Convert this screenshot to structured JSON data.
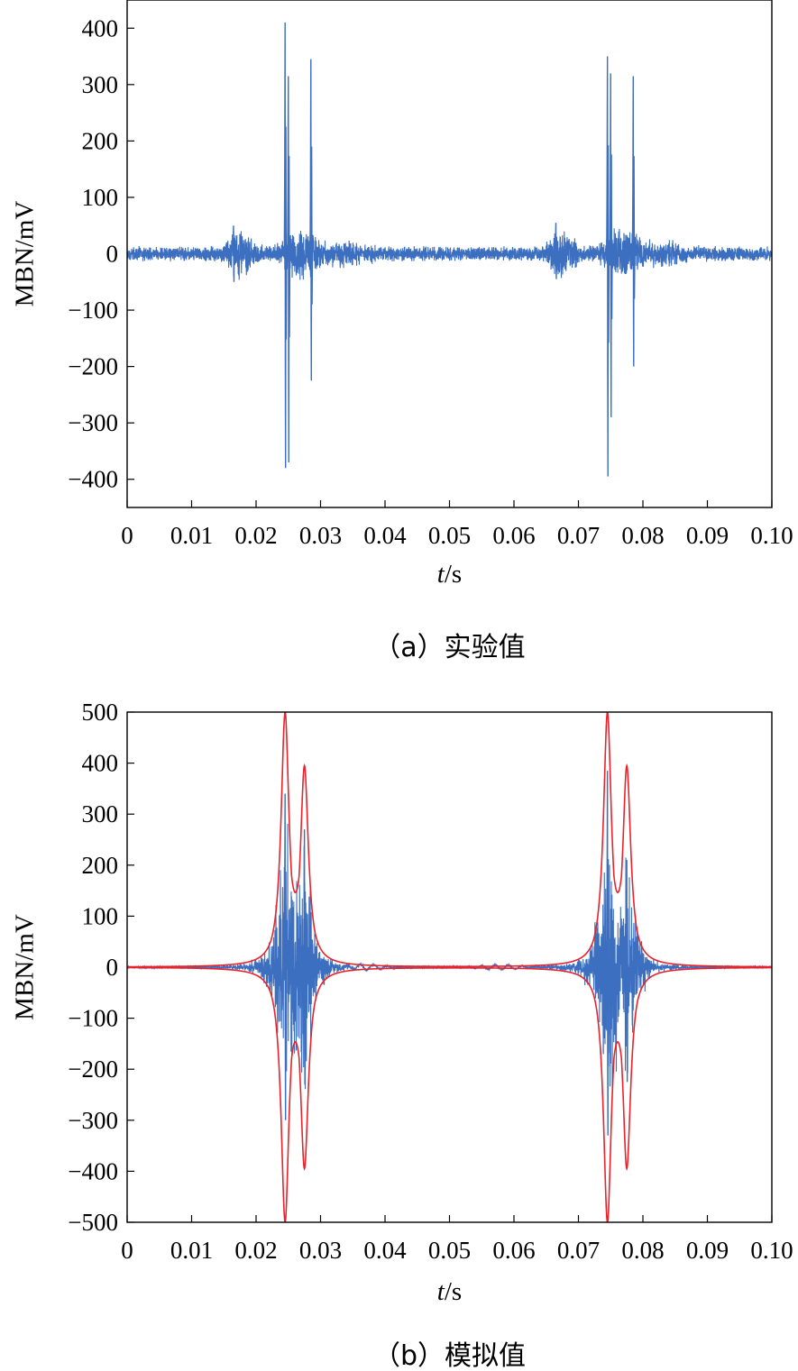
{
  "chart_data": [
    {
      "type": "line",
      "caption": "（a）实验值",
      "xlabel_italic": "t",
      "xlabel_unit": "/s",
      "ylabel": "MBN/mV",
      "xlim": [
        0,
        0.1
      ],
      "ylim": [
        -450,
        450
      ],
      "x_ticks": [
        "0",
        "0.01",
        "0.02",
        "0.03",
        "0.04",
        "0.05",
        "0.06",
        "0.07",
        "0.08",
        "0.09",
        "0.10"
      ],
      "y_ticks": [
        400,
        300,
        200,
        100,
        0,
        -100,
        -200,
        -300,
        -400
      ],
      "grid": false,
      "series": [
        {
          "color": "#3c6fbf",
          "bursts": [
            {
              "t": 0.0165,
              "max": 50,
              "min": -50
            },
            {
              "t": 0.0245,
              "max": 410,
              "min": -380
            },
            {
              "t": 0.025,
              "max": 315,
              "min": -370
            },
            {
              "t": 0.0285,
              "max": 345,
              "min": -225
            },
            {
              "t": 0.0665,
              "max": 55,
              "min": -45
            },
            {
              "t": 0.0745,
              "max": 350,
              "min": -395
            },
            {
              "t": 0.075,
              "max": 320,
              "min": -290
            },
            {
              "t": 0.0785,
              "max": 315,
              "min": -200
            }
          ]
        }
      ]
    },
    {
      "type": "line",
      "caption": "（b）模拟值",
      "xlabel_italic": "t",
      "xlabel_unit": "/s",
      "ylabel": "MBN/mV",
      "xlim": [
        0,
        0.1
      ],
      "ylim": [
        -500,
        500
      ],
      "x_ticks": [
        "0",
        "0.01",
        "0.02",
        "0.03",
        "0.04",
        "0.05",
        "0.06",
        "0.07",
        "0.08",
        "0.09",
        "0.10"
      ],
      "y_ticks": [
        500,
        400,
        300,
        200,
        100,
        0,
        -100,
        -200,
        -300,
        -400,
        -500
      ],
      "grid": false,
      "series": [
        {
          "color": "#3c6fbf",
          "bursts": [
            {
              "t": 0.0245,
              "max": 340,
              "min": -300
            },
            {
              "t": 0.0275,
              "max": 270,
              "min": -230
            },
            {
              "t": 0.0745,
              "max": 385,
              "min": -330
            },
            {
              "t": 0.0775,
              "max": 210,
              "min": -225
            }
          ]
        },
        {
          "color": "#e8232b",
          "envelope_peaks": [
            {
              "t": 0.0245,
              "value": 500
            },
            {
              "t": 0.0275,
              "value": 395
            },
            {
              "t": 0.0745,
              "value": 500
            },
            {
              "t": 0.0775,
              "value": 395
            }
          ]
        }
      ]
    }
  ]
}
